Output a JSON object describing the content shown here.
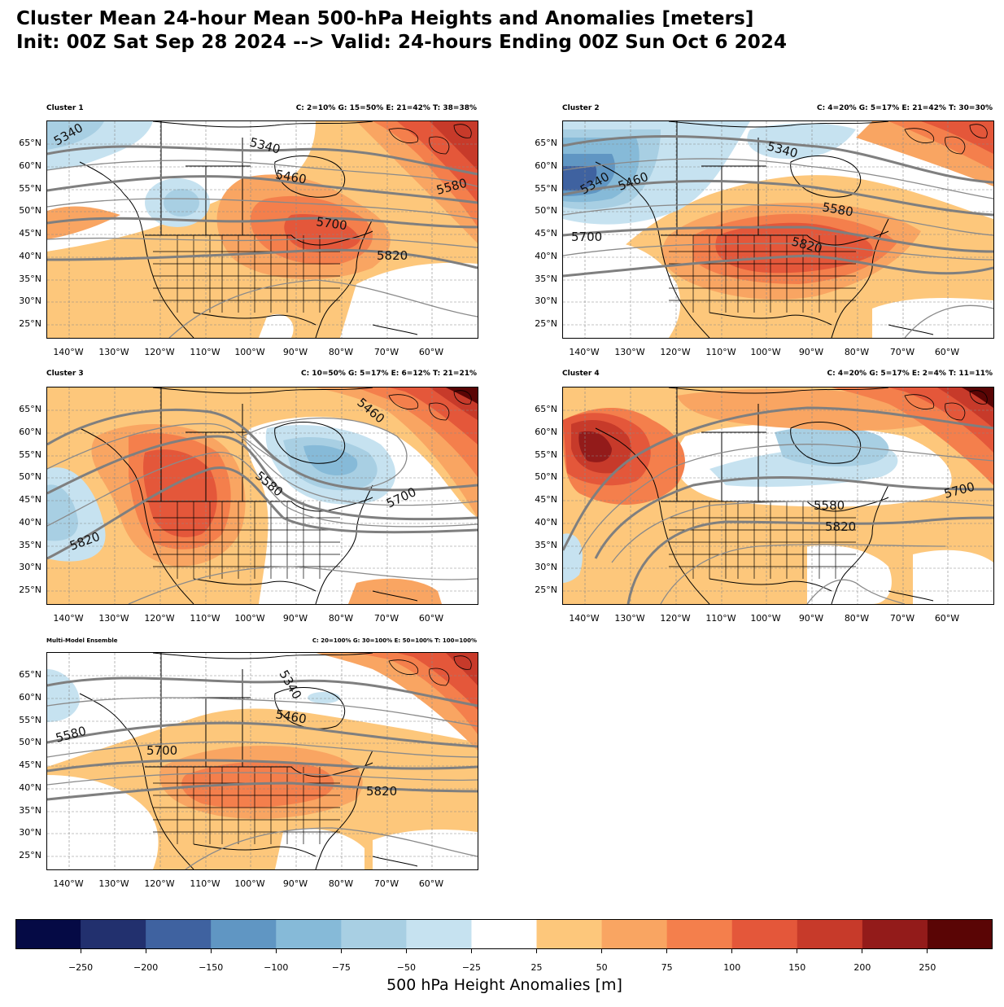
{
  "title": {
    "line1": "Cluster Mean 24-hour Mean 500-hPa Heights and Anomalies [meters]",
    "line2": "Init: 00Z Sat Sep 28 2024 --> Valid: 24-hours Ending 00Z Sun Oct 6 2024"
  },
  "axes": {
    "lat_labels": [
      "65°N",
      "60°N",
      "55°N",
      "50°N",
      "45°N",
      "40°N",
      "35°N",
      "30°N",
      "25°N"
    ],
    "lon_labels": [
      "140°W",
      "130°W",
      "120°W",
      "110°W",
      "100°W",
      "90°W",
      "80°W",
      "70°W",
      "60°W"
    ]
  },
  "panels": [
    {
      "name": "Cluster 1",
      "stats": "C: 2=10%   G: 15=50%   E: 21=42%   T: 38=38%",
      "contour_labels": [
        "5340",
        "5340",
        "5460",
        "5580",
        "5700",
        "5820"
      ]
    },
    {
      "name": "Cluster 2",
      "stats": "C: 4=20%   G: 5=17%   E: 21=42%   T: 30=30%",
      "contour_labels": [
        "5340",
        "5340",
        "5460",
        "5580",
        "5700",
        "5820"
      ]
    },
    {
      "name": "Cluster 3",
      "stats": "C: 10=50%   G: 5=17%   E: 6=12%   T: 21=21%",
      "contour_labels": [
        "5460",
        "5580",
        "5700",
        "5820"
      ]
    },
    {
      "name": "Cluster 4",
      "stats": "C: 4=20%   G: 5=17%   E: 2=4%   T: 11=11%",
      "contour_labels": [
        "5580",
        "5700",
        "5820"
      ]
    },
    {
      "name": "Multi-Model Ensemble",
      "stats": "C: 20=100%  G: 30=100%  E: 50=100%  T: 100=100%",
      "contour_labels": [
        "5340",
        "5460",
        "5580",
        "5700",
        "5820"
      ]
    }
  ],
  "colorbar": {
    "label": "500 hPa Height Anomalies [m]",
    "ticks": [
      "−250",
      "−200",
      "−150",
      "−100",
      "−75",
      "−50",
      "−25",
      "25",
      "50",
      "75",
      "100",
      "150",
      "200",
      "250"
    ],
    "colors": [
      "#050a45",
      "#22306e",
      "#3f62a0",
      "#6096c3",
      "#86bad8",
      "#a8cfe3",
      "#c6e2f0",
      "#ffffff",
      "#fdc77b",
      "#f9a562",
      "#f47f4c",
      "#e4573a",
      "#c73a2a",
      "#931b1a",
      "#5a0505"
    ]
  }
}
